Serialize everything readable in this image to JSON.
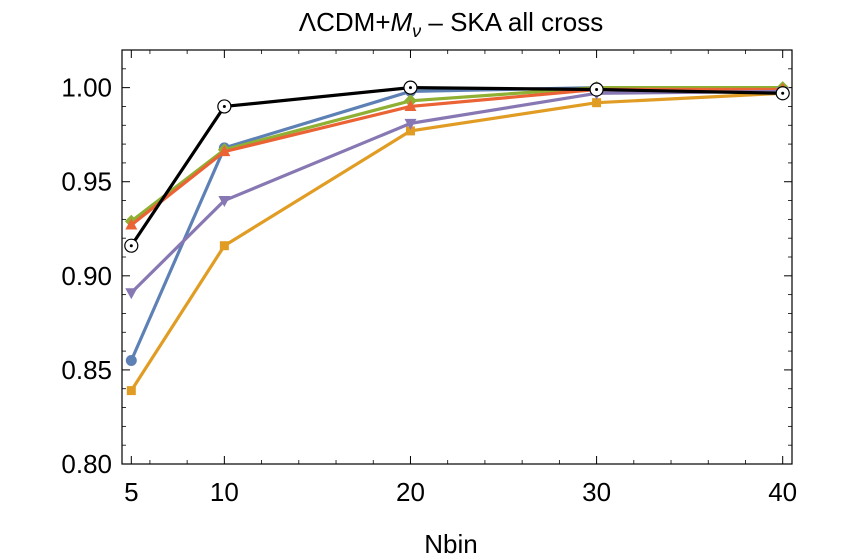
{
  "chart_data": {
    "type": "line",
    "title": {
      "prefix": "ΛCDM+",
      "symbol": "M",
      "subscript": "ν",
      "suffix": " – SKA all cross"
    },
    "xlabel": "Nbin",
    "ylabel": "",
    "xlim": [
      4.5,
      40.5
    ],
    "ylim": [
      0.8,
      1.02
    ],
    "xticks": [
      5,
      10,
      20,
      30,
      40
    ],
    "xtick_labels": [
      "5",
      "10",
      "20",
      "30",
      "40"
    ],
    "yticks": [
      0.8,
      0.85,
      0.9,
      0.95,
      1.0
    ],
    "ytick_labels": [
      "0.80",
      "0.85",
      "0.90",
      "0.95",
      "1.00"
    ],
    "x": [
      5,
      10,
      20,
      30,
      40
    ],
    "series": [
      {
        "name": "blue",
        "color": "#5e81b5",
        "marker": "circle",
        "values": [
          0.855,
          0.968,
          0.998,
          1.0,
          0.999
        ]
      },
      {
        "name": "gold",
        "color": "#e19c24",
        "marker": "square",
        "values": [
          0.839,
          0.916,
          0.977,
          0.992,
          0.997
        ]
      },
      {
        "name": "green",
        "color": "#8fb032",
        "marker": "diamond",
        "values": [
          0.929,
          0.967,
          0.993,
          1.0,
          1.0
        ]
      },
      {
        "name": "red",
        "color": "#eb6235",
        "marker": "triangle-up",
        "values": [
          0.927,
          0.966,
          0.99,
          0.999,
          0.999
        ]
      },
      {
        "name": "purple",
        "color": "#8778b3",
        "marker": "triangle-down",
        "values": [
          0.891,
          0.94,
          0.981,
          0.997,
          0.998
        ]
      },
      {
        "name": "black",
        "color": "#000000",
        "marker": "open-circle-dot",
        "values": [
          0.916,
          0.99,
          1.0,
          0.999,
          0.997
        ]
      }
    ]
  }
}
